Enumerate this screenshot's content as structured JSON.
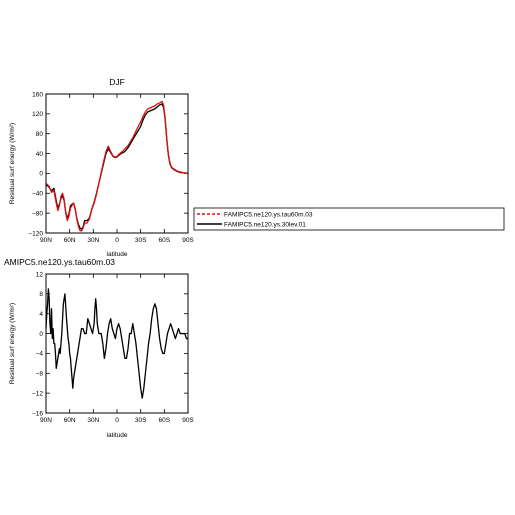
{
  "colors": {
    "red_series": "#e01010",
    "black_series": "#000000",
    "axis": "#000000"
  },
  "legend": {
    "entries": [
      {
        "label": "FAMIPC5.ne120.ys.tau60m.03",
        "color": "#e01010",
        "dash": true
      },
      {
        "label": "FAMIPC5.ne120.ys.30lev.01",
        "color": "#000000",
        "dash": false
      }
    ]
  },
  "chart_data": [
    {
      "type": "line",
      "title": "DJF",
      "xlabel": "latitude",
      "ylabel": "Residual surf energy (W/m²)",
      "ylim": [
        -120,
        160
      ],
      "yticks": [
        -120,
        -80,
        -40,
        0,
        40,
        80,
        120,
        160
      ],
      "yticklabels": [
        "−120",
        "−80",
        "−40",
        "0",
        "40",
        "80",
        "120",
        "160"
      ],
      "xlim": [
        90,
        -90
      ],
      "xticks": [
        90,
        60,
        30,
        0,
        -30,
        -60,
        -90
      ],
      "xticklabels": [
        "90N",
        "60N",
        "30N",
        "0",
        "30S",
        "60S",
        "90S"
      ],
      "grid": false,
      "series": [
        {
          "name": "FAMIPC5.ne120.ys.30lev.01",
          "color": "#000000",
          "x": [
            90,
            86,
            83,
            80,
            77,
            75,
            73,
            71,
            69,
            67,
            65,
            63,
            61,
            59,
            57,
            55,
            53,
            51,
            49,
            47,
            45,
            43,
            41,
            38,
            35,
            32,
            29,
            26,
            23,
            20,
            17,
            14,
            11,
            8,
            5,
            2,
            0,
            -2,
            -5,
            -8,
            -11,
            -14,
            -17,
            -20,
            -23,
            -26,
            -30,
            -33,
            -36,
            -39,
            -42,
            -45,
            -48,
            -51,
            -54,
            -57,
            -59,
            -61,
            -63,
            -65,
            -67,
            -69,
            -72,
            -76,
            -80,
            -85,
            -90
          ],
          "y": [
            -22,
            -28,
            -35,
            -30,
            -55,
            -70,
            -62,
            -50,
            -45,
            -55,
            -78,
            -90,
            -82,
            -65,
            -62,
            -60,
            -72,
            -90,
            -102,
            -110,
            -112,
            -108,
            -95,
            -95,
            -90,
            -72,
            -58,
            -40,
            -20,
            0,
            20,
            40,
            50,
            42,
            34,
            32,
            33,
            36,
            40,
            42,
            46,
            52,
            60,
            68,
            76,
            84,
            95,
            108,
            118,
            124,
            126,
            128,
            130,
            134,
            138,
            140,
            133,
            110,
            70,
            38,
            20,
            12,
            8,
            4,
            2,
            1,
            0
          ]
        },
        {
          "name": "FAMIPC5.ne120.ys.tau60m.03",
          "color": "#e01010",
          "x": [
            90,
            86,
            83,
            80,
            77,
            75,
            73,
            71,
            69,
            67,
            65,
            63,
            61,
            59,
            57,
            55,
            53,
            51,
            49,
            47,
            45,
            43,
            41,
            38,
            35,
            32,
            29,
            26,
            23,
            20,
            17,
            14,
            11,
            8,
            5,
            2,
            0,
            -2,
            -5,
            -8,
            -11,
            -14,
            -17,
            -20,
            -23,
            -26,
            -30,
            -33,
            -36,
            -39,
            -42,
            -45,
            -48,
            -51,
            -54,
            -57,
            -59,
            -61,
            -63,
            -65,
            -67,
            -69,
            -72,
            -76,
            -80,
            -85,
            -90
          ],
          "y": [
            -20,
            -26,
            -38,
            -35,
            -60,
            -75,
            -65,
            -46,
            -40,
            -52,
            -80,
            -95,
            -86,
            -70,
            -64,
            -60,
            -70,
            -92,
            -106,
            -115,
            -116,
            -110,
            -100,
            -100,
            -92,
            -73,
            -60,
            -42,
            -20,
            2,
            24,
            44,
            55,
            44,
            35,
            33,
            34,
            38,
            42,
            46,
            51,
            56,
            64,
            72,
            82,
            92,
            104,
            115,
            124,
            130,
            132,
            134,
            136,
            140,
            142,
            145,
            138,
            112,
            72,
            40,
            22,
            13,
            9,
            5,
            3,
            1,
            0
          ]
        }
      ]
    },
    {
      "type": "line",
      "title": "AMIPC5.ne120.ys.tau60m.03",
      "xlabel": "latitude",
      "ylabel": "Residual surf energy (W/m²)",
      "ylim": [
        -16,
        12
      ],
      "yticks": [
        -16,
        -12,
        -8,
        -4,
        0,
        4,
        8,
        12
      ],
      "yticklabels": [
        "−16",
        "−12",
        "−8",
        "−4",
        "0",
        "4",
        "8",
        "12"
      ],
      "xlim": [
        90,
        -90
      ],
      "xticks": [
        90,
        60,
        30,
        0,
        -30,
        -60,
        -90
      ],
      "xticklabels": [
        "90N",
        "60N",
        "30N",
        "0",
        "30S",
        "60S",
        "90S"
      ],
      "grid": false,
      "series": [
        {
          "color": "#000000",
          "x": [
            90,
            89,
            88,
            87,
            86,
            85,
            84,
            83,
            82,
            81,
            80,
            79,
            78,
            77,
            76,
            75,
            74,
            73,
            72,
            70,
            68,
            66,
            64,
            62,
            61,
            60,
            59,
            58,
            57,
            56,
            55,
            53,
            51,
            49,
            47,
            45,
            43,
            41,
            39,
            37,
            35,
            33,
            31,
            29,
            28,
            27,
            26,
            25,
            24,
            23,
            22,
            20,
            18,
            16,
            14,
            12,
            10,
            8,
            6,
            4,
            2,
            0,
            -2,
            -4,
            -6,
            -8,
            -10,
            -12,
            -14,
            -16,
            -18,
            -20,
            -22,
            -24,
            -26,
            -28,
            -30,
            -32,
            -34,
            -36,
            -38,
            -40,
            -42,
            -44,
            -46,
            -48,
            -50,
            -52,
            -54,
            -56,
            -58,
            -60,
            -62,
            -64,
            -66,
            -68,
            -70,
            -72,
            -74,
            -76,
            -78,
            -80,
            -82,
            -84,
            -86,
            -88,
            -90
          ],
          "y": [
            1,
            4,
            6,
            9,
            7,
            2,
            0,
            5,
            -1,
            1,
            -2,
            -2,
            -4,
            -7,
            -6,
            -5,
            -4,
            -3,
            -4,
            0,
            6,
            8,
            3,
            -1,
            -2,
            -4,
            -5,
            -7,
            -9,
            -11,
            -9,
            -7,
            -5,
            -3,
            -1,
            1,
            1,
            0,
            0,
            3,
            2,
            1,
            0,
            2,
            5,
            7,
            5,
            2,
            1,
            0,
            0,
            0,
            -2,
            -5,
            -3,
            0,
            2,
            3,
            1,
            0,
            -1,
            1,
            2,
            1,
            -1,
            -3,
            -5,
            -5,
            -3,
            0,
            0,
            2,
            0,
            -2,
            -5,
            -8,
            -11,
            -13,
            -11,
            -8,
            -5,
            -2,
            0,
            3,
            5,
            6,
            5,
            2,
            -1,
            -3,
            -4,
            -4,
            -2,
            0,
            1,
            2,
            1,
            0,
            -1,
            0,
            1,
            0,
            0,
            0,
            0,
            -1,
            -1
          ]
        }
      ]
    }
  ]
}
